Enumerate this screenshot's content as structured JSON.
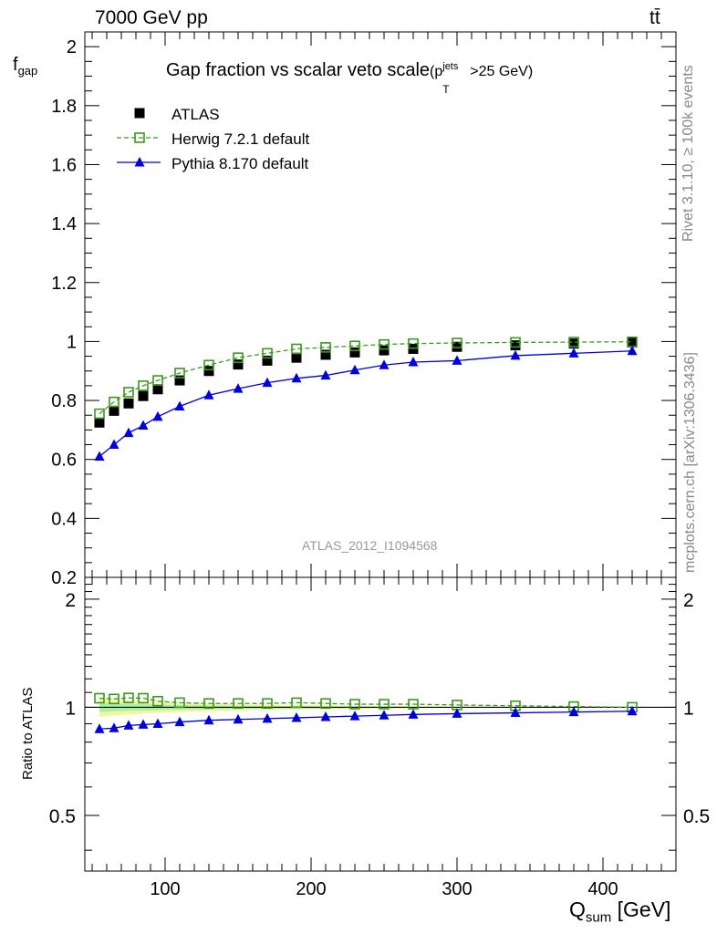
{
  "header": {
    "left": "7000 GeV pp",
    "right": "tt̄"
  },
  "side_text": {
    "rivet": "Rivet 3.1.10, ≥ 100k events",
    "mcplots": "mcplots.cern.ch [arXiv:1306.3436]"
  },
  "analysis_id": "ATLAS_2012_I1094568",
  "chart_data": [
    {
      "type": "line",
      "title": "Gap fraction vs scalar veto scale",
      "title_suffix": {
        "base": "(p",
        "sup": "jets",
        "sub": "T",
        "tail": ">25 GeV)"
      },
      "ylabel": {
        "base": "f",
        "sub": "gap"
      },
      "ylim": [
        0.2,
        2.05
      ],
      "yticks": [
        "0.2",
        "0.4",
        "0.6",
        "0.8",
        "1",
        "1.2",
        "1.4",
        "1.6",
        "1.8",
        "2"
      ],
      "xlim": [
        45,
        450
      ],
      "x": [
        55,
        65,
        75,
        85,
        95,
        110,
        130,
        150,
        170,
        190,
        210,
        230,
        250,
        270,
        300,
        340,
        380,
        420
      ],
      "legend_position": "top-left",
      "series": [
        {
          "name": "ATLAS",
          "color": "#000000",
          "marker": "filled-square",
          "values": [
            0.725,
            0.765,
            0.79,
            0.815,
            0.838,
            0.868,
            0.9,
            0.922,
            0.935,
            0.945,
            0.955,
            0.963,
            0.97,
            0.975,
            0.982,
            0.987,
            0.993,
            0.997
          ]
        },
        {
          "name": "Herwig 7.2.1 default",
          "color": "#3a9a1a",
          "marker": "open-square",
          "line": "dashed",
          "values": [
            0.755,
            0.795,
            0.828,
            0.85,
            0.868,
            0.893,
            0.92,
            0.945,
            0.96,
            0.975,
            0.98,
            0.985,
            0.99,
            0.993,
            0.995,
            0.997,
            0.998,
            0.999
          ]
        },
        {
          "name": "Pythia 8.170 default",
          "color": "#0000dd",
          "marker": "filled-triangle",
          "line": "solid",
          "values": [
            0.61,
            0.65,
            0.69,
            0.715,
            0.745,
            0.78,
            0.818,
            0.84,
            0.86,
            0.875,
            0.885,
            0.903,
            0.92,
            0.93,
            0.935,
            0.952,
            0.96,
            0.968
          ]
        }
      ]
    },
    {
      "type": "line",
      "ylabel": "Ratio to ATLAS",
      "xlabel": {
        "base": "Q",
        "sub": "sum",
        "tail": " [GeV]"
      },
      "ylim": [
        0.35,
        2.3
      ],
      "yscale": "log",
      "yticks": [
        "0.5",
        "1",
        "2"
      ],
      "xlim": [
        45,
        450
      ],
      "xticks": [
        "100",
        "200",
        "300",
        "400"
      ],
      "x": [
        55,
        65,
        75,
        85,
        95,
        110,
        130,
        150,
        170,
        190,
        210,
        230,
        250,
        270,
        300,
        340,
        380,
        420
      ],
      "band_lo": [
        0.94,
        0.95,
        0.955,
        0.96,
        0.965,
        0.97,
        0.975,
        0.98,
        0.983,
        0.985,
        0.987,
        0.99,
        0.992,
        0.994,
        0.995,
        0.996,
        0.997,
        0.998
      ],
      "band_hi": [
        1.06,
        1.05,
        1.045,
        1.04,
        1.035,
        1.03,
        1.025,
        1.02,
        1.017,
        1.015,
        1.013,
        1.01,
        1.008,
        1.006,
        1.005,
        1.004,
        1.003,
        1.002
      ],
      "series": [
        {
          "name": "Herwig 7.2.1 default",
          "color": "#3a9a1a",
          "marker": "open-square",
          "line": "dashed",
          "values": [
            1.06,
            1.055,
            1.062,
            1.06,
            1.04,
            1.03,
            1.025,
            1.025,
            1.025,
            1.03,
            1.025,
            1.02,
            1.02,
            1.02,
            1.015,
            1.01,
            1.005,
            1.0
          ]
        },
        {
          "name": "Pythia 8.170 default",
          "color": "#0000dd",
          "marker": "filled-triangle",
          "line": "solid",
          "values": [
            0.87,
            0.875,
            0.89,
            0.895,
            0.9,
            0.91,
            0.92,
            0.925,
            0.93,
            0.935,
            0.94,
            0.945,
            0.95,
            0.955,
            0.96,
            0.965,
            0.97,
            0.975
          ]
        }
      ]
    }
  ]
}
